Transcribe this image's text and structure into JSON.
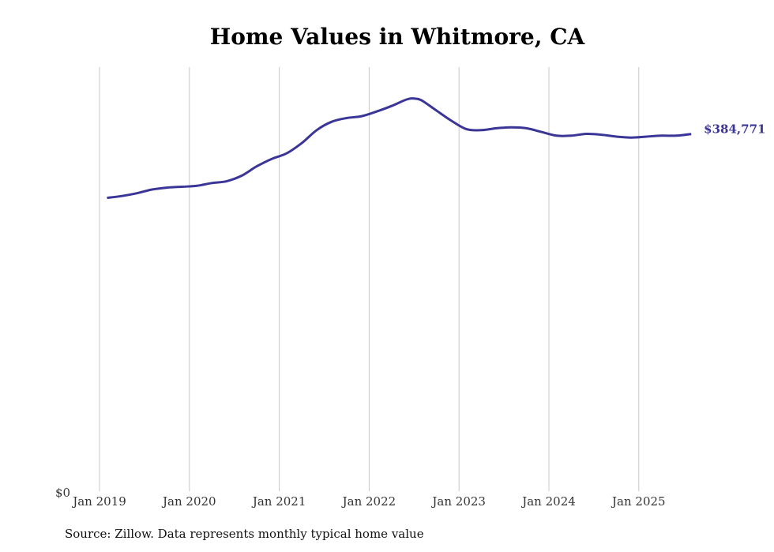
{
  "chart_data": {
    "type": "line",
    "title": "Home Values in Whitmore, CA",
    "xlabel": "",
    "ylabel": "",
    "x_tick_labels": [
      "Jan 2019",
      "Jan 2020",
      "Jan 2021",
      "Jan 2022",
      "Jan 2023",
      "Jan 2024",
      "Jan 2025"
    ],
    "y_tick_labels": [
      "$0"
    ],
    "ylim": [
      0,
      456000
    ],
    "grid": "vertical",
    "series": [
      {
        "color": "#3a3596",
        "end_label": "$384,771",
        "points": [
          [
            "2019-02",
            316000
          ],
          [
            "2019-04",
            318000
          ],
          [
            "2019-06",
            321000
          ],
          [
            "2019-08",
            325000
          ],
          [
            "2019-10",
            327000
          ],
          [
            "2019-12",
            328000
          ],
          [
            "2020-02",
            329000
          ],
          [
            "2020-04",
            332000
          ],
          [
            "2020-06",
            334000
          ],
          [
            "2020-08",
            340000
          ],
          [
            "2020-10",
            350000
          ],
          [
            "2020-12",
            358000
          ],
          [
            "2021-02",
            364000
          ],
          [
            "2021-04",
            375000
          ],
          [
            "2021-06",
            389000
          ],
          [
            "2021-08",
            398000
          ],
          [
            "2021-10",
            402000
          ],
          [
            "2021-12",
            404000
          ],
          [
            "2022-02",
            409000
          ],
          [
            "2022-04",
            415000
          ],
          [
            "2022-06",
            422000
          ],
          [
            "2022-07",
            423000
          ],
          [
            "2022-08",
            421000
          ],
          [
            "2022-10",
            410000
          ],
          [
            "2022-12",
            399000
          ],
          [
            "2023-02",
            390000
          ],
          [
            "2023-04",
            389000
          ],
          [
            "2023-06",
            391000
          ],
          [
            "2023-08",
            392000
          ],
          [
            "2023-10",
            391000
          ],
          [
            "2023-12",
            387000
          ],
          [
            "2024-02",
            383000
          ],
          [
            "2024-04",
            383000
          ],
          [
            "2024-06",
            385000
          ],
          [
            "2024-08",
            384000
          ],
          [
            "2024-10",
            382000
          ],
          [
            "2024-12",
            381000
          ],
          [
            "2025-02",
            382000
          ],
          [
            "2025-04",
            383000
          ],
          [
            "2025-06",
            383000
          ],
          [
            "2025-08",
            384771
          ]
        ]
      }
    ]
  },
  "footer": {
    "source": "Source: Zillow. Data represents monthly typical home value"
  }
}
